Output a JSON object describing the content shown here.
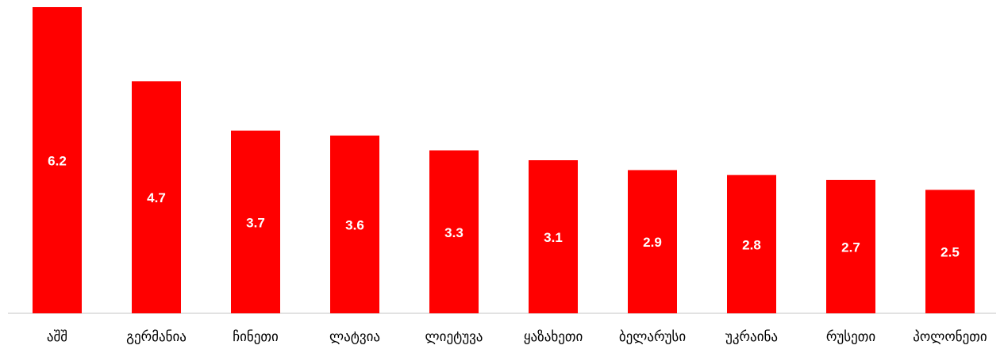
{
  "chart_data": {
    "type": "bar",
    "categories": [
      "აშშ",
      "გერმანია",
      "ჩინეთი",
      "ლატვია",
      "ლიეტუვა",
      "ყაზახეთი",
      "ბელარუსი",
      "უკრაინა",
      "რუსეთი",
      "პოლონეთი"
    ],
    "values": [
      6.2,
      4.7,
      3.7,
      3.6,
      3.3,
      3.1,
      2.9,
      2.8,
      2.7,
      2.5
    ],
    "color": "#ff0000"
  }
}
